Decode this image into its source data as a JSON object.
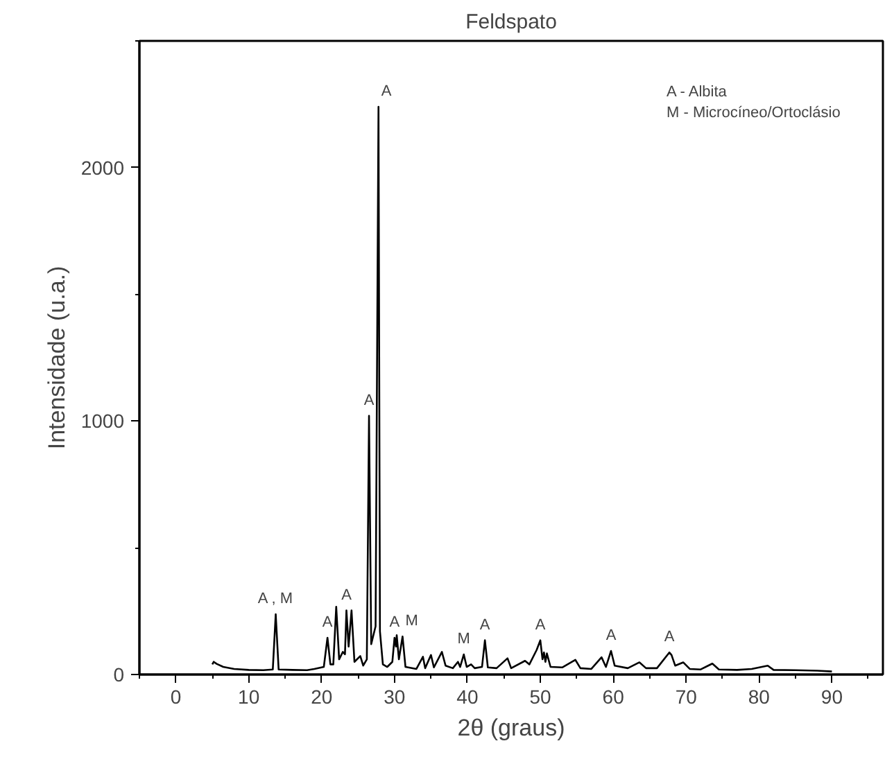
{
  "chart_data": {
    "type": "line",
    "title": "Feldspato",
    "xlabel": "2θ (graus)",
    "ylabel": "Intensidade (u.a.)",
    "xlim": [
      -5,
      97
    ],
    "ylim": [
      0,
      2500
    ],
    "xticks": [
      0,
      10,
      20,
      30,
      40,
      50,
      60,
      70,
      80,
      90
    ],
    "yticks": [
      0,
      1000,
      2000
    ],
    "grid": false,
    "marker": "none",
    "line_style": "solid",
    "series": [
      {
        "color": "#000000",
        "x": [
          5.0,
          5.2,
          5.6,
          6.5,
          8,
          10,
          12,
          13.3,
          13.7,
          14.1,
          16,
          18,
          19,
          20.3,
          20.8,
          21.2,
          21.6,
          22.0,
          22.4,
          22.9,
          23.2,
          23.4,
          23.7,
          24.1,
          24.5,
          25.3,
          25.7,
          26.2,
          26.5,
          26.8,
          27.4,
          27.8,
          28.0,
          28.4,
          29.0,
          29.7,
          30.0,
          30.2,
          30.3,
          30.6,
          31.1,
          31.5,
          33.0,
          33.9,
          34.2,
          35.0,
          35.4,
          36.5,
          37.0,
          38.0,
          38.7,
          39.0,
          39.5,
          39.9,
          40.5,
          41.0,
          42.0,
          42.4,
          42.8,
          44.0,
          45.5,
          46.0,
          47.9,
          48.5,
          49.5,
          50.0,
          50.3,
          50.5,
          50.7,
          50.9,
          51.4,
          53,
          54.8,
          55.5,
          57,
          58.4,
          59.0,
          59.7,
          60.2,
          62,
          63.6,
          64.5,
          66,
          67.7,
          68.0,
          68.5,
          69.6,
          70.5,
          72,
          73.6,
          74.5,
          77,
          79,
          81.2,
          82,
          85,
          88,
          90
        ],
        "values": [
          40,
          50,
          42,
          30,
          22,
          18,
          17,
          20,
          238,
          20,
          18,
          17,
          22,
          30,
          145,
          40,
          40,
          267,
          60,
          89,
          80,
          253,
          110,
          253,
          50,
          73,
          35,
          60,
          1021,
          120,
          190,
          2240,
          170,
          40,
          30,
          50,
          145,
          110,
          155,
          60,
          150,
          30,
          22,
          70,
          25,
          77,
          28,
          89,
          35,
          25,
          50,
          30,
          79,
          30,
          40,
          25,
          30,
          135,
          28,
          25,
          64,
          25,
          54,
          40,
          97,
          135,
          60,
          87,
          50,
          83,
          30,
          28,
          58,
          25,
          22,
          68,
          30,
          93,
          35,
          25,
          48,
          25,
          25,
          87,
          77,
          35,
          48,
          22,
          20,
          43,
          20,
          18,
          22,
          35,
          18,
          17,
          15,
          12
        ]
      }
    ],
    "annotations": [
      {
        "text": "A , M",
        "x": 13.7,
        "y": 238
      },
      {
        "text": "A",
        "x": 20.8,
        "y": 145
      },
      {
        "text": "A",
        "x": 23.4,
        "y": 253
      },
      {
        "text": "A",
        "x": 26.5,
        "y": 1021
      },
      {
        "text": "A",
        "x": 27.8,
        "y": 2240
      },
      {
        "text": "A",
        "x": 30.0,
        "y": 145
      },
      {
        "text": "M",
        "x": 31.1,
        "y": 150
      },
      {
        "text": "M",
        "x": 39.5,
        "y": 79
      },
      {
        "text": "A",
        "x": 42.4,
        "y": 135
      },
      {
        "text": "A",
        "x": 50.0,
        "y": 135
      },
      {
        "text": "A",
        "x": 59.7,
        "y": 93
      },
      {
        "text": "A",
        "x": 67.7,
        "y": 87
      },
      "A - Albita",
      "M - Microcíneo/Ortoclásio"
    ]
  }
}
